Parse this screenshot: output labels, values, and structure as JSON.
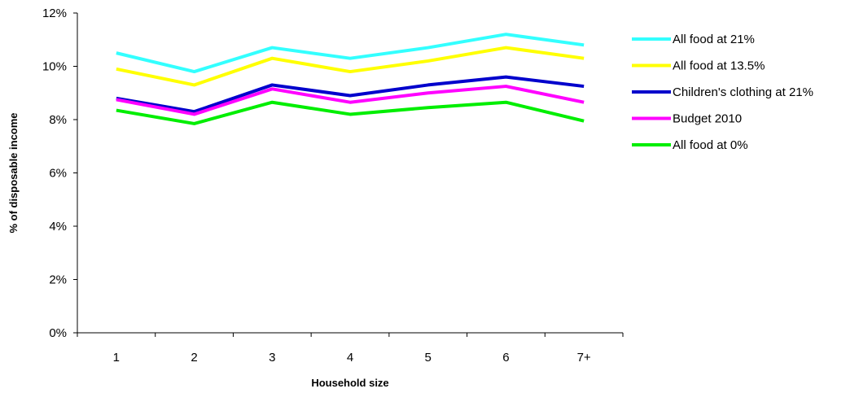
{
  "chart_data": {
    "type": "line",
    "title": "",
    "xlabel": "Household size",
    "ylabel": "% of disposable income",
    "categories": [
      "1",
      "2",
      "3",
      "4",
      "5",
      "6",
      "7+"
    ],
    "ylim": [
      0,
      12
    ],
    "yticks": [
      0,
      2,
      4,
      6,
      8,
      10,
      12
    ],
    "ytick_labels": [
      "0%",
      "2%",
      "4%",
      "6%",
      "8%",
      "10%",
      "12%"
    ],
    "grid": false,
    "legend_position": "right",
    "series": [
      {
        "name": "All food at 21%",
        "color": "#33ffff",
        "values": [
          10.5,
          9.8,
          10.7,
          10.3,
          10.7,
          11.2,
          10.8
        ]
      },
      {
        "name": "All food at 13.5%",
        "color": "#ffff00",
        "values": [
          9.9,
          9.3,
          10.3,
          9.8,
          10.2,
          10.7,
          10.3
        ]
      },
      {
        "name": "Children's clothing at 21%",
        "color": "#0000cc",
        "values": [
          8.8,
          8.3,
          9.3,
          8.9,
          9.3,
          9.6,
          9.25
        ]
      },
      {
        "name": "Budget 2010",
        "color": "#ff00ff",
        "values": [
          8.75,
          8.2,
          9.15,
          8.65,
          9.0,
          9.25,
          8.65
        ]
      },
      {
        "name": "All food at 0%",
        "color": "#00ee00",
        "values": [
          8.35,
          7.85,
          8.65,
          8.2,
          8.45,
          8.65,
          7.95
        ]
      }
    ]
  }
}
